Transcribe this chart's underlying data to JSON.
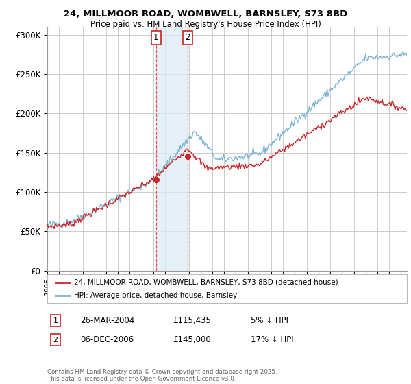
{
  "title_line1": "24, MILLMOOR ROAD, WOMBWELL, BARNSLEY, S73 8BD",
  "title_line2": "Price paid vs. HM Land Registry's House Price Index (HPI)",
  "ylabel_ticks": [
    "£0",
    "£50K",
    "£100K",
    "£150K",
    "£200K",
    "£250K",
    "£300K"
  ],
  "ytick_values": [
    0,
    50000,
    100000,
    150000,
    200000,
    250000,
    300000
  ],
  "ylim": [
    0,
    310000
  ],
  "xlim_start": 1995.0,
  "xlim_end": 2025.5,
  "purchase1_date": 2004.23,
  "purchase1_price": 115435,
  "purchase1_label": "1",
  "purchase2_date": 2006.92,
  "purchase2_price": 145000,
  "purchase2_label": "2",
  "hpi_color": "#7ab3d4",
  "price_color": "#cc2222",
  "purchase_marker_color": "#cc2222",
  "shaded_region_color": "#daeaf5",
  "shaded_region_alpha": 0.7,
  "dashed_line_color": "#dd4444",
  "legend_label_price": "24, MILLMOOR ROAD, WOMBWELL, BARNSLEY, S73 8BD (detached house)",
  "legend_label_hpi": "HPI: Average price, detached house, Barnsley",
  "info1_label": "1",
  "info1_date": "26-MAR-2004",
  "info1_price": "£115,435",
  "info1_change": "5% ↓ HPI",
  "info2_label": "2",
  "info2_date": "06-DEC-2006",
  "info2_price": "£145,000",
  "info2_change": "17% ↓ HPI",
  "footnote": "Contains HM Land Registry data © Crown copyright and database right 2025.\nThis data is licensed under the Open Government Licence v3.0.",
  "background_color": "#ffffff",
  "grid_color": "#cccccc"
}
